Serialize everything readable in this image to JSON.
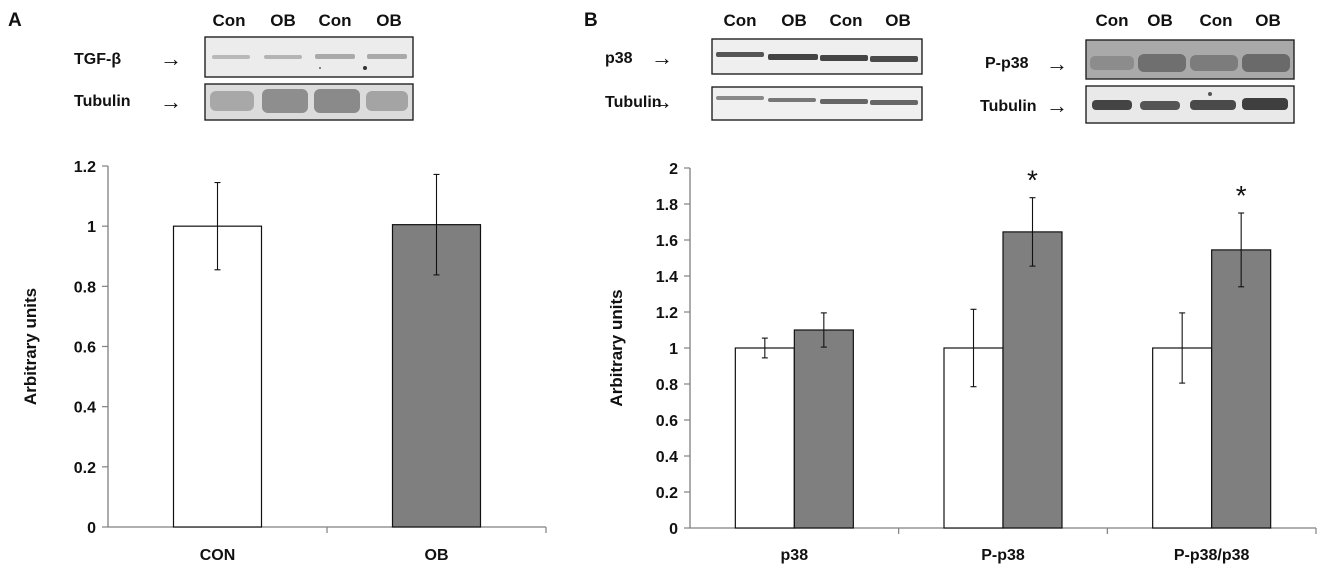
{
  "panels": {
    "A": {
      "letter": "A",
      "lanes": [
        "Con",
        "OB",
        "Con",
        "OB"
      ],
      "blots": [
        {
          "label": "TGF-β",
          "arrow": "→"
        },
        {
          "label": "Tubulin",
          "arrow": "→"
        }
      ]
    },
    "B": {
      "letter": "B",
      "lanes_left": [
        "Con",
        "OB",
        "Con",
        "OB"
      ],
      "lanes_right": [
        "Con",
        "OB",
        "Con",
        "OB"
      ],
      "blots_left": [
        {
          "label": "p38",
          "arrow": "→"
        },
        {
          "label": "Tubulin",
          "arrow": "→"
        }
      ],
      "blots_right": [
        {
          "label": "P-p38",
          "arrow": "→"
        },
        {
          "label": "Tubulin",
          "arrow": "→"
        }
      ]
    }
  },
  "colors": {
    "con_bar": "#ffffff",
    "ob_bar": "#7f7f7f",
    "axis": "#808080"
  },
  "chart_data": [
    {
      "type": "bar",
      "panel": "A",
      "categories": [
        "CON",
        "OB"
      ],
      "series": [
        {
          "values": [
            1.0,
            1.005
          ],
          "errors": [
            0.145,
            0.167
          ],
          "colors": [
            "#ffffff",
            "#7f7f7f"
          ]
        }
      ],
      "ylabel": "Arbitrary units",
      "ylim": [
        0,
        1.2
      ],
      "yticks": [
        0,
        0.2,
        0.4,
        0.6,
        0.8,
        1,
        1.2
      ],
      "ytick_labels": [
        "0",
        "0.2",
        "0.4",
        "0.6",
        "0.8",
        "1",
        "1.2"
      ],
      "grid": false
    },
    {
      "type": "bar",
      "panel": "B",
      "categories": [
        "p38",
        "P-p38",
        "P-p38/p38"
      ],
      "series": [
        {
          "group": "Con",
          "values": [
            1.0,
            1.0,
            1.0
          ],
          "errors": [
            0.055,
            0.215,
            0.195
          ],
          "color": "#ffffff"
        },
        {
          "group": "OB",
          "values": [
            1.1,
            1.645,
            1.545
          ],
          "errors": [
            0.095,
            0.19,
            0.205
          ],
          "color": "#7f7f7f"
        }
      ],
      "annotations": [
        {
          "text": "*",
          "category": "P-p38",
          "group": "OB"
        },
        {
          "text": "*",
          "category": "P-p38/p38",
          "group": "OB"
        }
      ],
      "ylabel": "Arbitrary units",
      "ylim": [
        0,
        2
      ],
      "yticks": [
        0,
        0.2,
        0.4,
        0.6,
        0.8,
        1,
        1.2,
        1.4,
        1.6,
        1.8,
        2
      ],
      "ytick_labels": [
        "0",
        "0.2",
        "0.4",
        "0.6",
        "0.8",
        "1",
        "1.2",
        "1.4",
        "1.6",
        "1.8",
        "2"
      ],
      "grid": false
    }
  ]
}
